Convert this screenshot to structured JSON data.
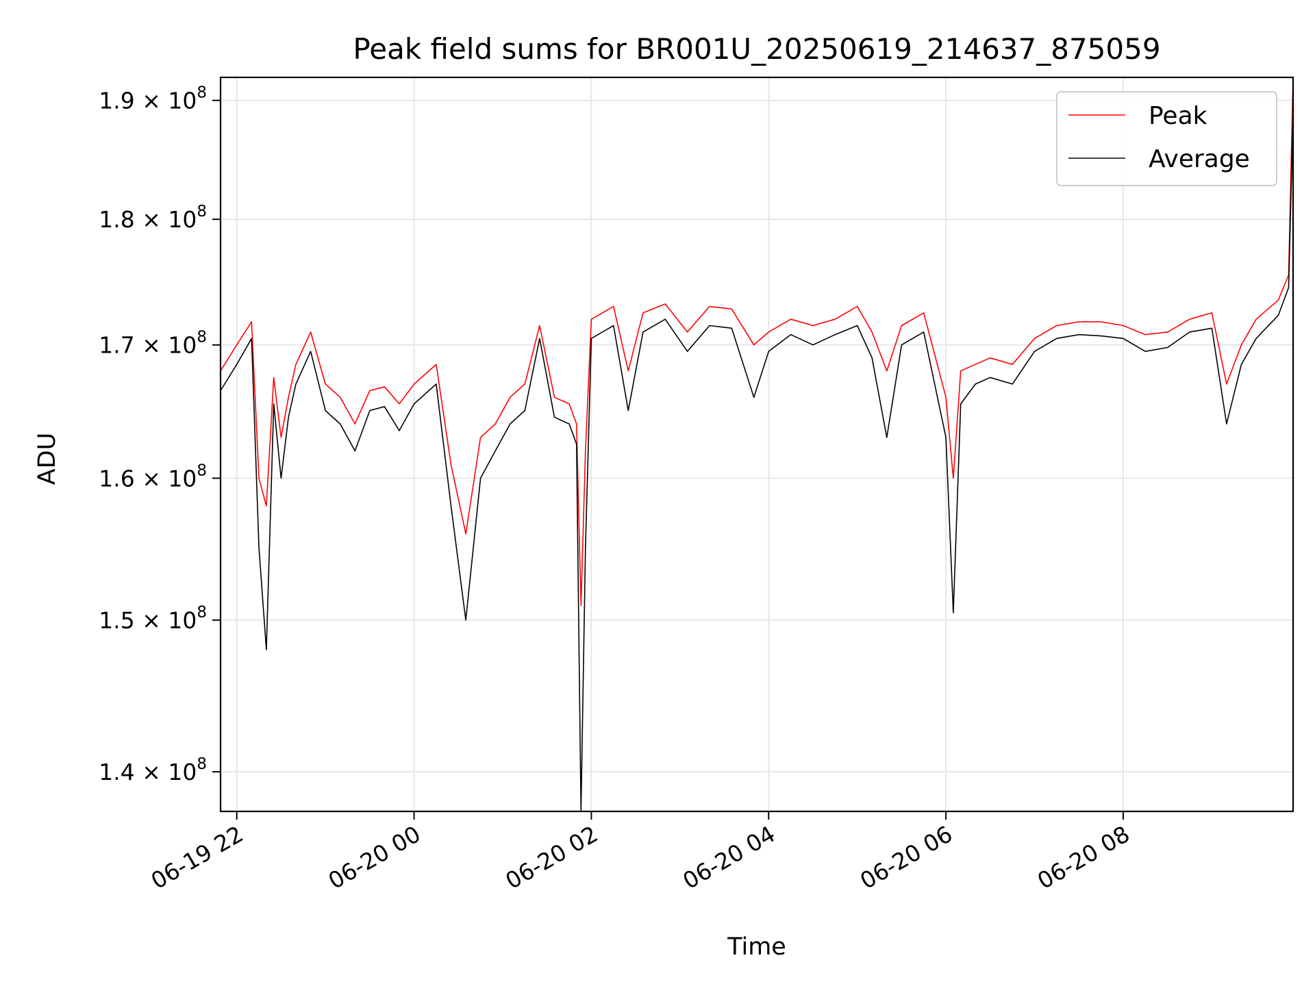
{
  "chart_data": {
    "type": "line",
    "title": "Peak field sums for BR001U_20250619_214637_875059",
    "xlabel": "Time",
    "ylabel": "ADU",
    "y_scale": "log",
    "xlim": [
      "06-19 21:49",
      "06-20 09:55"
    ],
    "ylim": [
      137500000,
      192000000
    ],
    "grid": true,
    "legend": {
      "placement": "top-right",
      "entries": [
        "Peak",
        "Average"
      ]
    },
    "x_ticks": [
      {
        "value": "06-19 22:00",
        "label": "06-19 22"
      },
      {
        "value": "06-20 00:00",
        "label": "06-20 00"
      },
      {
        "value": "06-20 02:00",
        "label": "06-20 02"
      },
      {
        "value": "06-20 04:00",
        "label": "06-20 04"
      },
      {
        "value": "06-20 06:00",
        "label": "06-20 06"
      },
      {
        "value": "06-20 08:00",
        "label": "06-20 08"
      }
    ],
    "y_ticks": [
      {
        "value": 140000000,
        "mantissa": "1.4"
      },
      {
        "value": 150000000,
        "mantissa": "1.5"
      },
      {
        "value": 160000000,
        "mantissa": "1.6"
      },
      {
        "value": 170000000,
        "mantissa": "1.7"
      },
      {
        "value": 180000000,
        "mantissa": "1.8"
      },
      {
        "value": 190000000,
        "mantissa": "1.9"
      }
    ],
    "y_tick_suffix": "× 10",
    "y_tick_exponent": "8",
    "series": [
      {
        "name": "Peak",
        "color": "#ff0000",
        "x": [
          "06-19 21:49",
          "06-19 22:00",
          "06-19 22:10",
          "06-19 22:15",
          "06-19 22:20",
          "06-19 22:25",
          "06-19 22:30",
          "06-19 22:35",
          "06-19 22:40",
          "06-19 22:50",
          "06-19 23:00",
          "06-19 23:10",
          "06-19 23:20",
          "06-19 23:30",
          "06-19 23:40",
          "06-19 23:50",
          "06-20 00:00",
          "06-20 00:15",
          "06-20 00:25",
          "06-20 00:35",
          "06-20 00:45",
          "06-20 00:55",
          "06-20 01:05",
          "06-20 01:15",
          "06-20 01:25",
          "06-20 01:35",
          "06-20 01:45",
          "06-20 01:50",
          "06-20 01:53",
          "06-20 01:56",
          "06-20 02:00",
          "06-20 02:15",
          "06-20 02:25",
          "06-20 02:35",
          "06-20 02:50",
          "06-20 03:05",
          "06-20 03:20",
          "06-20 03:35",
          "06-20 03:50",
          "06-20 04:00",
          "06-20 04:15",
          "06-20 04:30",
          "06-20 04:45",
          "06-20 05:00",
          "06-20 05:10",
          "06-20 05:20",
          "06-20 05:30",
          "06-20 05:45",
          "06-20 06:00",
          "06-20 06:05",
          "06-20 06:10",
          "06-20 06:20",
          "06-20 06:30",
          "06-20 06:45",
          "06-20 07:00",
          "06-20 07:15",
          "06-20 07:30",
          "06-20 07:45",
          "06-20 08:00",
          "06-20 08:15",
          "06-20 08:30",
          "06-20 08:45",
          "06-20 09:00",
          "06-20 09:10",
          "06-20 09:20",
          "06-20 09:30",
          "06-20 09:45",
          "06-20 09:52",
          "06-20 09:55"
        ],
        "y": [
          168000000,
          170000000,
          171800000,
          160000000,
          158000000,
          167500000,
          163000000,
          166000000,
          168500000,
          171000000,
          167000000,
          166000000,
          164000000,
          166500000,
          166800000,
          165500000,
          167000000,
          168500000,
          161000000,
          156000000,
          163000000,
          164000000,
          166000000,
          167000000,
          171500000,
          166000000,
          165500000,
          164000000,
          151000000,
          162000000,
          172000000,
          173000000,
          168000000,
          172500000,
          173200000,
          171000000,
          173000000,
          172800000,
          170000000,
          171000000,
          172000000,
          171500000,
          172000000,
          173000000,
          171000000,
          168000000,
          171500000,
          172500000,
          166000000,
          160000000,
          168000000,
          168500000,
          169000000,
          168500000,
          170500000,
          171500000,
          171800000,
          171800000,
          171500000,
          170800000,
          171000000,
          172000000,
          172500000,
          167000000,
          170000000,
          172000000,
          173500000,
          175500000,
          192000000
        ]
      },
      {
        "name": "Average",
        "color": "#000000",
        "x": [
          "06-19 21:49",
          "06-19 22:00",
          "06-19 22:10",
          "06-19 22:15",
          "06-19 22:20",
          "06-19 22:25",
          "06-19 22:30",
          "06-19 22:35",
          "06-19 22:40",
          "06-19 22:50",
          "06-19 23:00",
          "06-19 23:10",
          "06-19 23:20",
          "06-19 23:30",
          "06-19 23:40",
          "06-19 23:50",
          "06-20 00:00",
          "06-20 00:15",
          "06-20 00:25",
          "06-20 00:35",
          "06-20 00:45",
          "06-20 00:55",
          "06-20 01:05",
          "06-20 01:15",
          "06-20 01:25",
          "06-20 01:35",
          "06-20 01:45",
          "06-20 01:50",
          "06-20 01:53",
          "06-20 01:56",
          "06-20 02:00",
          "06-20 02:15",
          "06-20 02:25",
          "06-20 02:35",
          "06-20 02:50",
          "06-20 03:05",
          "06-20 03:20",
          "06-20 03:35",
          "06-20 03:50",
          "06-20 04:00",
          "06-20 04:15",
          "06-20 04:30",
          "06-20 04:45",
          "06-20 05:00",
          "06-20 05:10",
          "06-20 05:20",
          "06-20 05:30",
          "06-20 05:45",
          "06-20 06:00",
          "06-20 06:05",
          "06-20 06:10",
          "06-20 06:20",
          "06-20 06:30",
          "06-20 06:45",
          "06-20 07:00",
          "06-20 07:15",
          "06-20 07:30",
          "06-20 07:45",
          "06-20 08:00",
          "06-20 08:15",
          "06-20 08:30",
          "06-20 08:45",
          "06-20 09:00",
          "06-20 09:10",
          "06-20 09:20",
          "06-20 09:30",
          "06-20 09:45",
          "06-20 09:52",
          "06-20 09:55"
        ],
        "y": [
          166500000,
          168500000,
          170500000,
          155000000,
          148000000,
          165500000,
          160000000,
          164500000,
          167000000,
          169500000,
          165000000,
          164000000,
          162000000,
          165000000,
          165300000,
          163500000,
          165500000,
          167000000,
          158000000,
          150000000,
          160000000,
          162000000,
          164000000,
          165000000,
          170500000,
          164500000,
          164000000,
          162500000,
          137500000,
          155000000,
          170500000,
          171500000,
          165000000,
          171000000,
          172000000,
          169500000,
          171500000,
          171300000,
          166000000,
          169500000,
          170800000,
          170000000,
          170800000,
          171500000,
          169000000,
          163000000,
          170000000,
          171000000,
          163000000,
          150500000,
          165500000,
          167000000,
          167500000,
          167000000,
          169500000,
          170500000,
          170800000,
          170700000,
          170500000,
          169500000,
          169800000,
          171000000,
          171300000,
          164000000,
          168500000,
          170500000,
          172300000,
          174500000,
          189000000
        ]
      }
    ]
  }
}
